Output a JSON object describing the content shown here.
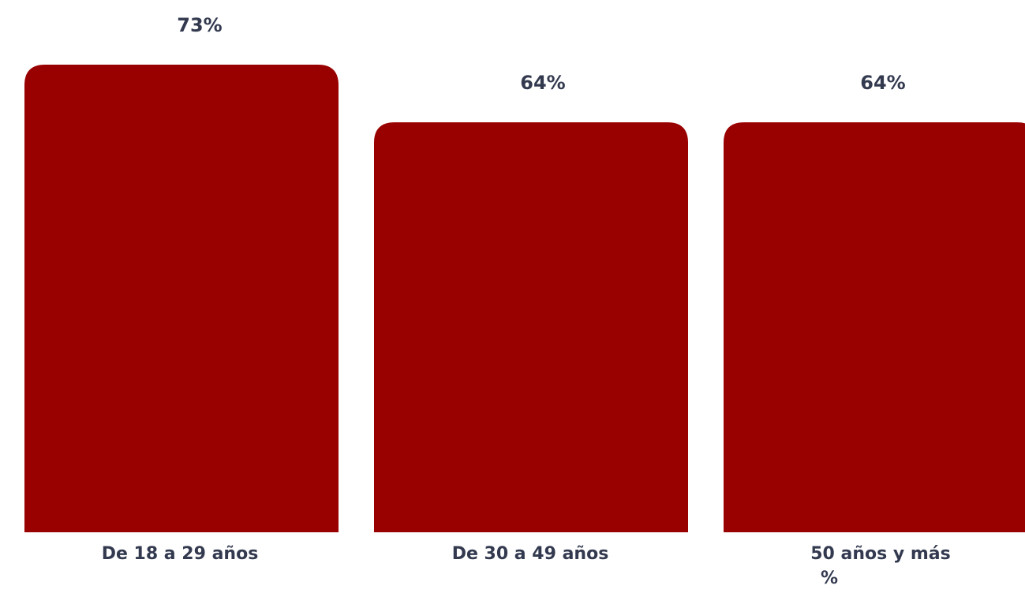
{
  "chart_data": {
    "type": "bar",
    "categories": [
      "De 18 a 29 años",
      "De 30 a 49 años",
      "50 años y más"
    ],
    "values": [
      73,
      64,
      64
    ],
    "value_labels": [
      "73%",
      "64%",
      "64%"
    ],
    "unit": "%",
    "title": "",
    "xlabel": "",
    "ylabel": "",
    "ylim": [
      0,
      73
    ],
    "grid": false,
    "legend": "none",
    "colors": {
      "bar": "#990000",
      "text": "#333a4f",
      "background": "#ffffff"
    }
  }
}
